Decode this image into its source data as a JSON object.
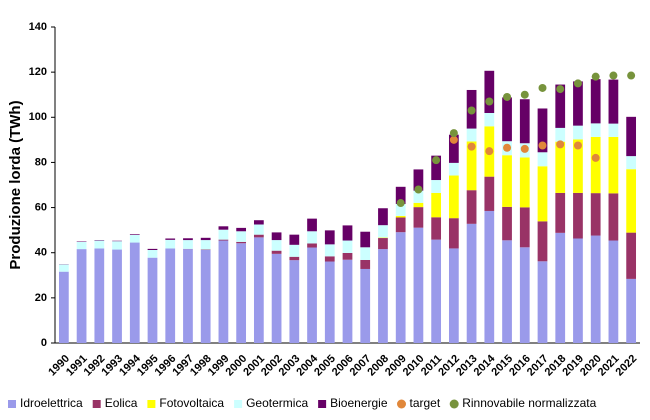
{
  "chart_data": {
    "type": "bar",
    "stacked": true,
    "y_label": "Produzione lorda (TWh)",
    "categories": [
      "1990",
      "1991",
      "1992",
      "1993",
      "1994",
      "1995",
      "1996",
      "1997",
      "1998",
      "1999",
      "2000",
      "2001",
      "2002",
      "2003",
      "2004",
      "2005",
      "2006",
      "2007",
      "2008",
      "2009",
      "2010",
      "2011",
      "2012",
      "2013",
      "2014",
      "2015",
      "2016",
      "2017",
      "2018",
      "2019",
      "2020",
      "2021",
      "2022"
    ],
    "ylim": [
      0,
      140
    ],
    "yticks": [
      0,
      20,
      40,
      60,
      80,
      100,
      120,
      140
    ],
    "legend": "bottom",
    "series": [
      {
        "name": "Idroelettrica",
        "type": "bar",
        "color": "#9a9aea",
        "values": [
          31.6,
          41.6,
          41.9,
          41.4,
          44.5,
          37.8,
          41.9,
          41.6,
          41.2,
          45.4,
          44.2,
          46.8,
          39.5,
          36.7,
          42.3,
          36.1,
          36.9,
          32.8,
          41.6,
          49.1,
          51.1,
          45.8,
          41.9,
          52.8,
          58.5,
          45.5,
          42.4,
          36.2,
          48.8,
          46.3,
          47.6,
          45.4,
          28.4
        ]
      },
      {
        "name": "Eolica",
        "type": "bar",
        "color": "#993366",
        "values": [
          0,
          0,
          0,
          0,
          0,
          0,
          0,
          0.1,
          0.2,
          0.4,
          0.6,
          1.2,
          1.4,
          1.5,
          1.8,
          2.3,
          3.0,
          4.0,
          4.9,
          6.5,
          9.1,
          9.9,
          13.4,
          14.9,
          15.2,
          14.8,
          17.7,
          17.7,
          17.7,
          20.2,
          18.8,
          20.9,
          20.5
        ]
      },
      {
        "name": "Fotovoltaica",
        "type": "bar",
        "color": "#ffff00",
        "values": [
          0,
          0,
          0,
          0,
          0,
          0,
          0,
          0,
          0,
          0,
          0,
          0,
          0,
          0,
          0,
          0,
          0,
          0,
          0.2,
          0.7,
          1.9,
          10.8,
          18.9,
          21.6,
          22.3,
          22.9,
          22.1,
          24.4,
          22.7,
          23.7,
          24.9,
          25.0,
          28.1
        ]
      },
      {
        "name": "Geotermica",
        "type": "bar",
        "color": "#ccffff",
        "values": [
          3.2,
          3.2,
          3.5,
          3.7,
          3.4,
          3.4,
          3.8,
          3.9,
          4.2,
          4.4,
          4.7,
          4.5,
          4.7,
          5.3,
          5.4,
          5.3,
          5.5,
          5.6,
          5.5,
          5.3,
          5.4,
          5.7,
          5.6,
          5.7,
          5.9,
          6.2,
          6.3,
          6.2,
          6.1,
          6.1,
          6.0,
          5.9,
          5.8
        ]
      },
      {
        "name": "Bioenergie",
        "type": "bar",
        "color": "#660066",
        "values": [
          0.1,
          0.2,
          0.2,
          0.2,
          0.3,
          0.5,
          0.6,
          0.8,
          1.0,
          1.5,
          1.5,
          1.9,
          3.4,
          4.5,
          5.6,
          6.2,
          6.7,
          6.9,
          7.5,
          7.6,
          9.4,
          10.8,
          12.5,
          17.1,
          18.7,
          19.4,
          19.5,
          19.4,
          19.2,
          19.6,
          19.6,
          19.5,
          17.4
        ]
      },
      {
        "name": "target",
        "type": "scatter",
        "color": "#e0873a",
        "values": [
          null,
          null,
          null,
          null,
          null,
          null,
          null,
          null,
          null,
          null,
          null,
          null,
          null,
          null,
          null,
          null,
          null,
          null,
          null,
          null,
          null,
          null,
          90,
          87,
          85,
          86.5,
          86,
          87.5,
          88,
          87.5,
          82,
          null,
          null
        ]
      },
      {
        "name": "Rinnovabile normalizzata",
        "type": "scatter",
        "color": "#77933c",
        "values": [
          null,
          null,
          null,
          null,
          null,
          null,
          null,
          null,
          null,
          null,
          null,
          null,
          null,
          null,
          null,
          null,
          null,
          null,
          null,
          62,
          68,
          81,
          93,
          103,
          107,
          109,
          110,
          113,
          112.5,
          115,
          118,
          118.5,
          118.5
        ]
      }
    ]
  }
}
